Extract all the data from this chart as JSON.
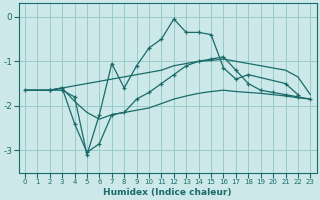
{
  "background_color": "#cce8e8",
  "grid_color": "#99cccc",
  "line_color": "#1a6b6b",
  "xlabel": "Humidex (Indice chaleur)",
  "ylim": [
    -3.5,
    0.3
  ],
  "xlim": [
    -0.5,
    23.5
  ],
  "yticks": [
    0,
    -1,
    -2,
    -3
  ],
  "xticks": [
    0,
    1,
    2,
    3,
    4,
    5,
    6,
    7,
    8,
    9,
    10,
    11,
    12,
    13,
    14,
    15,
    16,
    17,
    18,
    19,
    20,
    21,
    22,
    23
  ],
  "series": [
    {
      "x": [
        2,
        3,
        4,
        5,
        6,
        7,
        8,
        9,
        10,
        11,
        12,
        13,
        14,
        15,
        16,
        17,
        18,
        21,
        22
      ],
      "y": [
        -1.65,
        -1.65,
        -1.8,
        -3.1,
        -2.2,
        -1.05,
        -1.6,
        -1.1,
        -0.7,
        -0.5,
        -0.05,
        -0.35,
        -0.35,
        -0.4,
        -1.15,
        -1.4,
        -1.3,
        -1.5,
        -1.75
      ],
      "marker": true
    },
    {
      "x": [
        0,
        2,
        3,
        4,
        5,
        6,
        7,
        8,
        9,
        10,
        11,
        12,
        13,
        14,
        15,
        16,
        17,
        18,
        19,
        20,
        21,
        22,
        23
      ],
      "y": [
        -1.65,
        -1.65,
        -1.6,
        -1.55,
        -1.5,
        -1.45,
        -1.4,
        -1.35,
        -1.3,
        -1.25,
        -1.2,
        -1.1,
        -1.05,
        -1.0,
        -0.98,
        -0.95,
        -1.0,
        -1.05,
        -1.1,
        -1.15,
        -1.2,
        -1.35,
        -1.75
      ],
      "marker": false
    },
    {
      "x": [
        0,
        2,
        3,
        4,
        5,
        6,
        7,
        8,
        9,
        10,
        11,
        12,
        13,
        14,
        15,
        16,
        17,
        18,
        19,
        20,
        21,
        22,
        23
      ],
      "y": [
        -1.65,
        -1.65,
        -1.6,
        -2.4,
        -3.05,
        -2.85,
        -2.2,
        -2.15,
        -1.85,
        -1.7,
        -1.5,
        -1.3,
        -1.1,
        -1.0,
        -0.95,
        -0.9,
        -1.2,
        -1.5,
        -1.65,
        -1.7,
        -1.75,
        -1.8,
        -1.85
      ],
      "marker": true
    },
    {
      "x": [
        0,
        2,
        3,
        4,
        5,
        6,
        7,
        8,
        9,
        10,
        11,
        12,
        13,
        14,
        15,
        16,
        17,
        18,
        19,
        20,
        21,
        22,
        23
      ],
      "y": [
        -1.65,
        -1.65,
        -1.6,
        -1.9,
        -2.15,
        -2.3,
        -2.2,
        -2.15,
        -2.1,
        -2.05,
        -1.95,
        -1.85,
        -1.78,
        -1.72,
        -1.68,
        -1.65,
        -1.68,
        -1.7,
        -1.72,
        -1.75,
        -1.78,
        -1.82,
        -1.85
      ],
      "marker": false
    }
  ]
}
